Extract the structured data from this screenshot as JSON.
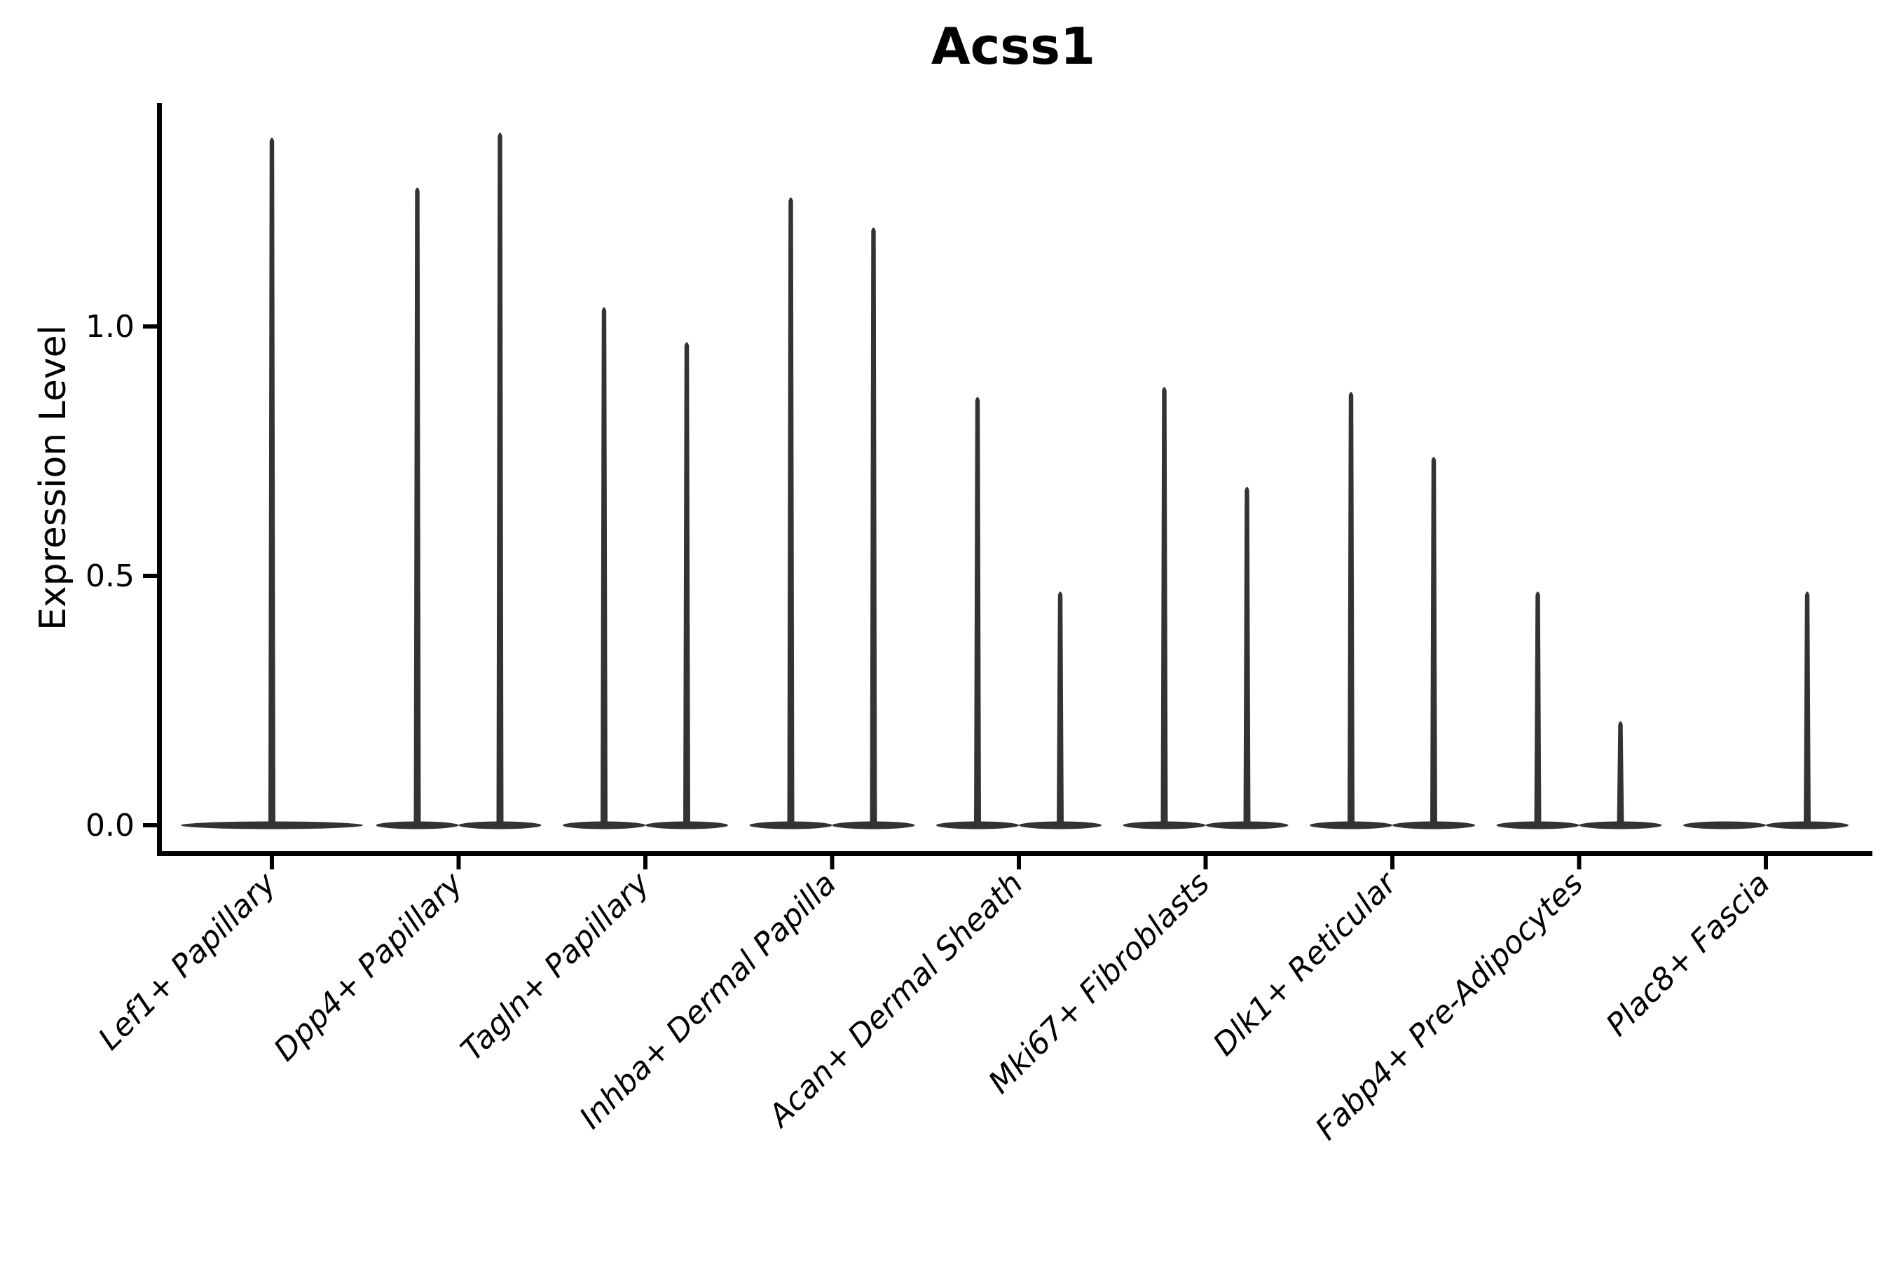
{
  "figure": {
    "background": "#ffffff"
  },
  "chart_data": {
    "type": "violin",
    "title": "Acss1",
    "title_style": "bold",
    "xlabel": "",
    "ylabel": "Expression Level",
    "ytick_labels": [
      "0.0",
      "0.5",
      "1.0"
    ],
    "ytick_values": [
      0.0,
      0.5,
      1.0
    ],
    "ylim": [
      -0.06,
      1.45
    ],
    "grid": false,
    "legend": "none",
    "axis_color": "#000000",
    "violin_color": "#333333",
    "label_angle_degrees": 45,
    "categories": [
      "Lef1+ Papillary",
      "Dpp4+ Papillary",
      "Tagln+ Papillary",
      "Inhba+ Dermal Papilla",
      "Acan+ Dermal Sheath",
      "Mki67+ Fibroblasts",
      "Dlk1+ Reticular",
      "Fabp4+ Pre-Adipocytes",
      "Plac8+ Fascia"
    ],
    "violins": [
      {
        "category": "Lef1+ Papillary",
        "glyphs": [
          {
            "position": "center",
            "peak_expression": 1.38
          }
        ]
      },
      {
        "category": "Dpp4+ Papillary",
        "glyphs": [
          {
            "position": "left",
            "peak_expression": 1.28
          },
          {
            "position": "right",
            "peak_expression": 1.39
          }
        ]
      },
      {
        "category": "Tagln+ Papillary",
        "glyphs": [
          {
            "position": "left",
            "peak_expression": 1.04
          },
          {
            "position": "right",
            "peak_expression": 0.97
          }
        ]
      },
      {
        "category": "Inhba+ Dermal Papilla",
        "glyphs": [
          {
            "position": "left",
            "peak_expression": 1.26
          },
          {
            "position": "right",
            "peak_expression": 1.2
          }
        ]
      },
      {
        "category": "Acan+ Dermal Sheath",
        "glyphs": [
          {
            "position": "left",
            "peak_expression": 0.86
          },
          {
            "position": "right",
            "peak_expression": 0.47
          }
        ]
      },
      {
        "category": "Mki67+ Fibroblasts",
        "glyphs": [
          {
            "position": "left",
            "peak_expression": 0.88
          },
          {
            "position": "right",
            "peak_expression": 0.68
          }
        ]
      },
      {
        "category": "Dlk1+ Reticular",
        "glyphs": [
          {
            "position": "left",
            "peak_expression": 0.87
          },
          {
            "position": "right",
            "peak_expression": 0.74
          }
        ]
      },
      {
        "category": "Fabp4+ Pre-Adipocytes",
        "glyphs": [
          {
            "position": "left",
            "peak_expression": 0.47
          },
          {
            "position": "right",
            "peak_expression": 0.21
          }
        ]
      },
      {
        "category": "Plac8+ Fascia",
        "glyphs": [
          {
            "position": "left",
            "peak_expression": 0.0
          },
          {
            "position": "right",
            "peak_expression": 0.47
          }
        ]
      }
    ]
  }
}
